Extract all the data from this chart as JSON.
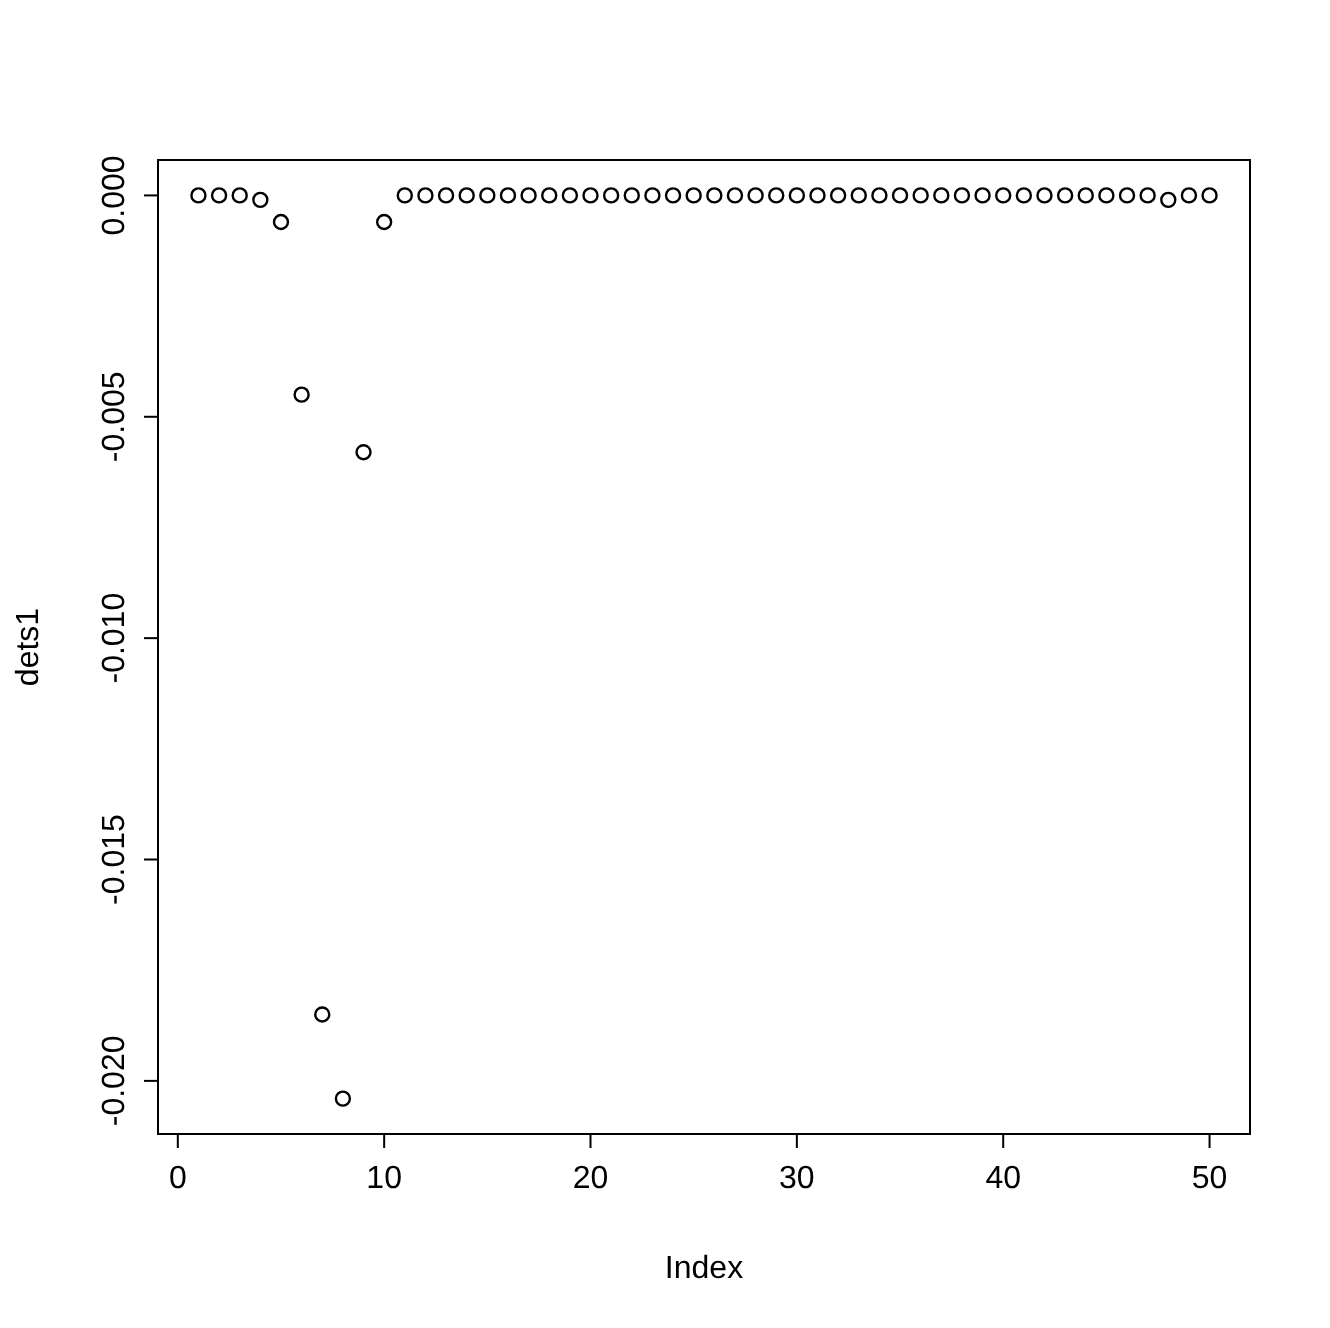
{
  "chart_data": {
    "type": "scatter",
    "xlabel": "Index",
    "ylabel": "dets1",
    "marker": "circle",
    "color": "#000000",
    "x": [
      1,
      2,
      3,
      4,
      5,
      6,
      7,
      8,
      9,
      10,
      11,
      12,
      13,
      14,
      15,
      16,
      17,
      18,
      19,
      20,
      21,
      22,
      23,
      24,
      25,
      26,
      27,
      28,
      29,
      30,
      31,
      32,
      33,
      34,
      35,
      36,
      37,
      38,
      39,
      40,
      41,
      42,
      43,
      44,
      45,
      46,
      47,
      48,
      49,
      50
    ],
    "values": [
      0,
      0,
      0,
      -0.0001,
      -0.0006,
      -0.0045,
      -0.0185,
      -0.0204,
      -0.0058,
      -0.0006,
      0,
      0,
      0,
      0,
      0,
      0,
      0,
      0,
      0,
      0,
      0,
      0,
      0,
      0,
      0,
      0,
      0,
      0,
      0,
      0,
      0,
      0,
      0,
      0,
      0,
      0,
      0,
      0,
      0,
      0,
      0,
      0,
      0,
      0,
      0,
      0,
      0,
      -0.0001,
      0,
      0
    ],
    "xlim": [
      -0.96,
      51.96
    ],
    "ylim": [
      -0.0212,
      0.0008
    ],
    "xticks": [
      0,
      10,
      20,
      30,
      40,
      50
    ],
    "yticks": [
      {
        "value": 0,
        "label": "0.000"
      },
      {
        "value": -0.005,
        "label": "-0.005"
      },
      {
        "value": -0.01,
        "label": "-0.010"
      },
      {
        "value": -0.015,
        "label": "-0.015"
      },
      {
        "value": -0.02,
        "label": "-0.020"
      }
    ]
  }
}
